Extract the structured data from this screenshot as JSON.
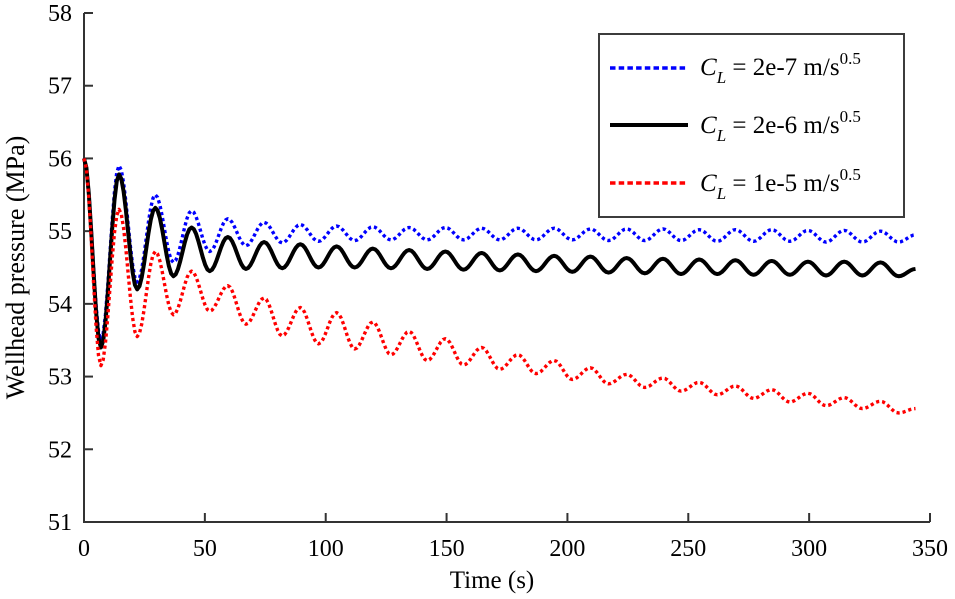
{
  "figure": {
    "background": "#ffffff",
    "axis_color": "#333333",
    "text_color": "#000000",
    "legend_border_color": "#3c3c3c"
  },
  "chart_data": {
    "type": "line",
    "title": "",
    "xlabel": "Time (s)",
    "ylabel": "Wellhead pressure (MPa)",
    "xlim": [
      0,
      350
    ],
    "ylim": [
      51,
      58
    ],
    "x_ticks": [
      0,
      50,
      100,
      150,
      200,
      250,
      300,
      350
    ],
    "y_ticks": [
      51,
      52,
      53,
      54,
      55,
      56,
      57,
      58
    ],
    "grid": false,
    "legend_position": "top-right",
    "interpolation": "cosine-between-extrema",
    "series": [
      {
        "name": "C_L = 2e-7 m/s^0.5",
        "label_parts": {
          "var": "C",
          "sub": "L",
          "mid": " = 2e-7 m/s",
          "sup": "0.5"
        },
        "color": "#0000ff",
        "style": "dotted",
        "width": 3.4,
        "points": [
          [
            0,
            56.0
          ],
          [
            7,
            53.5
          ],
          [
            14.5,
            55.9
          ],
          [
            22,
            54.3
          ],
          [
            29.5,
            55.5
          ],
          [
            37,
            54.57
          ],
          [
            44.5,
            55.28
          ],
          [
            52,
            54.72
          ],
          [
            59.5,
            55.17
          ],
          [
            67,
            54.8
          ],
          [
            74.5,
            55.12
          ],
          [
            82,
            54.84
          ],
          [
            89.5,
            55.09
          ],
          [
            97,
            54.86
          ],
          [
            104.5,
            55.07
          ],
          [
            112,
            54.87
          ],
          [
            119.5,
            55.06
          ],
          [
            127,
            54.88
          ],
          [
            134.5,
            55.05
          ],
          [
            142,
            54.88
          ],
          [
            149.5,
            55.05
          ],
          [
            157,
            54.88
          ],
          [
            164.5,
            55.04
          ],
          [
            172,
            54.88
          ],
          [
            179.5,
            55.04
          ],
          [
            187,
            54.88
          ],
          [
            194.5,
            55.04
          ],
          [
            202,
            54.88
          ],
          [
            209.5,
            55.03
          ],
          [
            217,
            54.87
          ],
          [
            224.5,
            55.03
          ],
          [
            232,
            54.87
          ],
          [
            239.5,
            55.03
          ],
          [
            247,
            54.87
          ],
          [
            254.5,
            55.02
          ],
          [
            262,
            54.86
          ],
          [
            269.5,
            55.02
          ],
          [
            277,
            54.86
          ],
          [
            284.5,
            55.02
          ],
          [
            292,
            54.86
          ],
          [
            299.5,
            55.01
          ],
          [
            307,
            54.85
          ],
          [
            314.5,
            55.01
          ],
          [
            322,
            54.85
          ],
          [
            329.5,
            55.0
          ],
          [
            337,
            54.85
          ],
          [
            344,
            54.95
          ]
        ]
      },
      {
        "name": "C_L = 2e-6 m/s^0.5",
        "label_parts": {
          "var": "C",
          "sub": "L",
          "mid": " = 2e-6 m/s",
          "sup": "0.5"
        },
        "color": "#000000",
        "style": "solid",
        "width": 4,
        "points": [
          [
            0,
            56.0
          ],
          [
            7,
            53.4
          ],
          [
            14.5,
            55.78
          ],
          [
            22,
            54.2
          ],
          [
            29.5,
            55.32
          ],
          [
            37,
            54.38
          ],
          [
            44.5,
            55.05
          ],
          [
            52,
            54.45
          ],
          [
            59.5,
            54.92
          ],
          [
            67,
            54.48
          ],
          [
            74.5,
            54.85
          ],
          [
            82,
            54.49
          ],
          [
            89.5,
            54.82
          ],
          [
            97,
            54.5
          ],
          [
            104.5,
            54.79
          ],
          [
            112,
            54.5
          ],
          [
            119.5,
            54.76
          ],
          [
            127,
            54.49
          ],
          [
            134.5,
            54.74
          ],
          [
            142,
            54.48
          ],
          [
            149.5,
            54.72
          ],
          [
            157,
            54.47
          ],
          [
            164.5,
            54.7
          ],
          [
            172,
            54.46
          ],
          [
            179.5,
            54.68
          ],
          [
            187,
            54.45
          ],
          [
            194.5,
            54.66
          ],
          [
            202,
            54.44
          ],
          [
            209.5,
            54.65
          ],
          [
            217,
            54.43
          ],
          [
            224.5,
            54.63
          ],
          [
            232,
            54.42
          ],
          [
            239.5,
            54.62
          ],
          [
            247,
            54.41
          ],
          [
            254.5,
            54.61
          ],
          [
            262,
            54.41
          ],
          [
            269.5,
            54.6
          ],
          [
            277,
            54.4
          ],
          [
            284.5,
            54.59
          ],
          [
            292,
            54.4
          ],
          [
            299.5,
            54.58
          ],
          [
            307,
            54.39
          ],
          [
            314.5,
            54.58
          ],
          [
            322,
            54.39
          ],
          [
            329.5,
            54.57
          ],
          [
            337,
            54.38
          ],
          [
            344,
            54.48
          ]
        ]
      },
      {
        "name": "C_L = 1e-5 m/s^0.5",
        "label_parts": {
          "var": "C",
          "sub": "L",
          "mid": " = 1e-5 m/s",
          "sup": "0.5"
        },
        "color": "#ff0000",
        "style": "dotted",
        "width": 3.4,
        "points": [
          [
            0,
            56.0
          ],
          [
            7,
            53.15
          ],
          [
            14.5,
            55.3
          ],
          [
            22,
            53.55
          ],
          [
            29.5,
            54.72
          ],
          [
            37,
            53.85
          ],
          [
            44.5,
            54.45
          ],
          [
            52,
            53.9
          ],
          [
            59.5,
            54.25
          ],
          [
            67,
            53.72
          ],
          [
            74.5,
            54.08
          ],
          [
            82,
            53.56
          ],
          [
            89.5,
            53.95
          ],
          [
            97,
            53.45
          ],
          [
            104.5,
            53.88
          ],
          [
            112,
            53.38
          ],
          [
            119.5,
            53.75
          ],
          [
            127,
            53.3
          ],
          [
            134.5,
            53.62
          ],
          [
            142,
            53.22
          ],
          [
            149.5,
            53.52
          ],
          [
            157,
            53.16
          ],
          [
            164.5,
            53.4
          ],
          [
            172,
            53.1
          ],
          [
            179.5,
            53.3
          ],
          [
            187,
            53.04
          ],
          [
            194.5,
            53.22
          ],
          [
            202,
            52.96
          ],
          [
            209.5,
            53.12
          ],
          [
            217,
            52.9
          ],
          [
            224.5,
            53.03
          ],
          [
            232,
            52.85
          ],
          [
            239.5,
            52.98
          ],
          [
            247,
            52.8
          ],
          [
            254.5,
            52.92
          ],
          [
            262,
            52.75
          ],
          [
            269.5,
            52.87
          ],
          [
            277,
            52.7
          ],
          [
            284.5,
            52.82
          ],
          [
            292,
            52.65
          ],
          [
            299.5,
            52.77
          ],
          [
            307,
            52.6
          ],
          [
            314.5,
            52.71
          ],
          [
            322,
            52.56
          ],
          [
            329.5,
            52.66
          ],
          [
            337,
            52.5
          ],
          [
            344,
            52.56
          ]
        ]
      }
    ]
  }
}
